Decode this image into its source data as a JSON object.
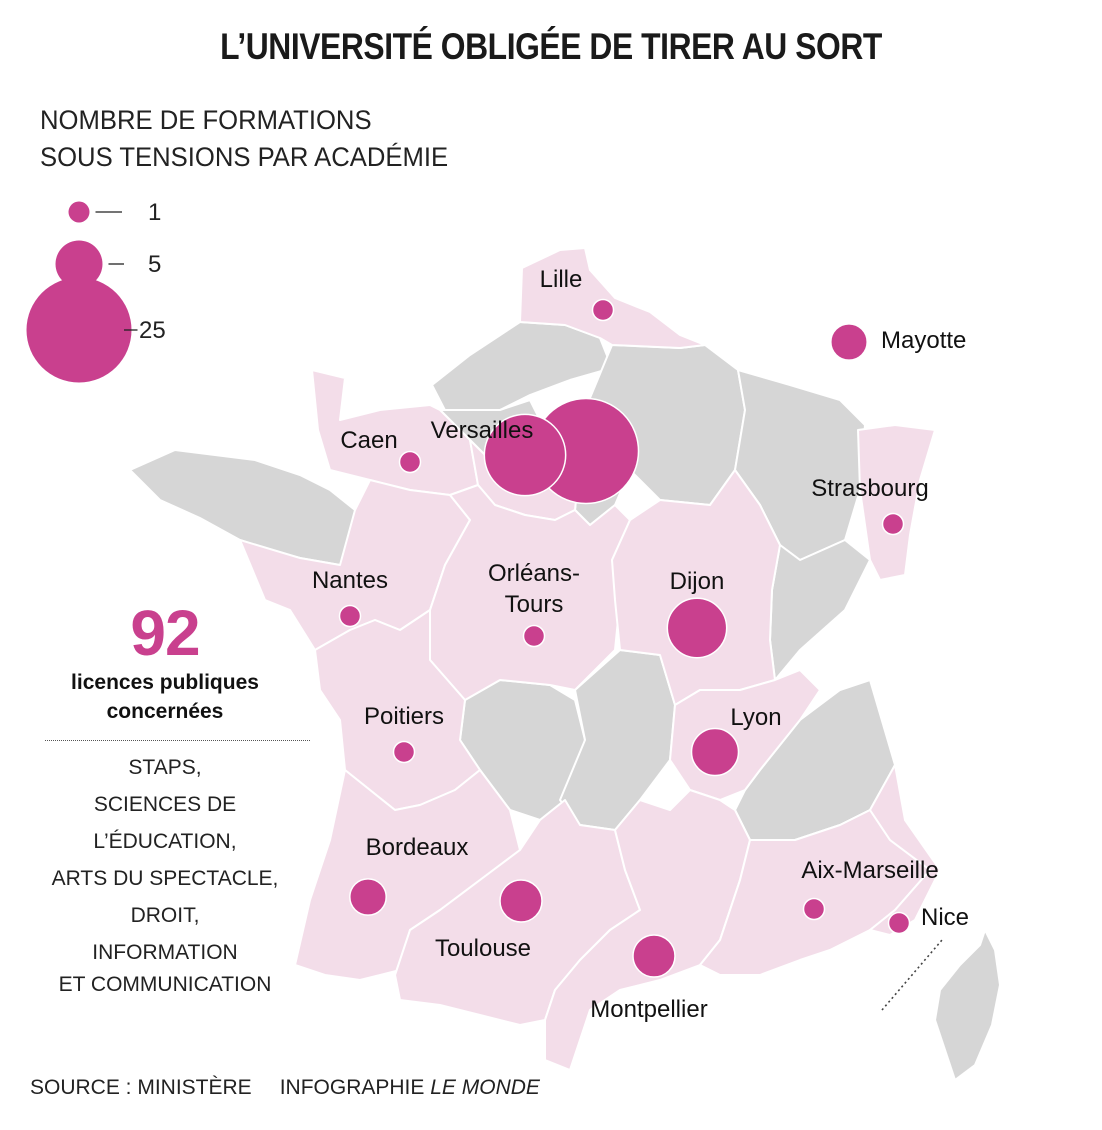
{
  "title": "L’UNIVERSITÉ OBLIGÉE DE TIRER AU SORT",
  "subtitle": [
    "NOMBRE DE FORMATIONS",
    "SOUS TENSIONS PAR ACADÉMIE"
  ],
  "legend": [
    {
      "value": 1,
      "label": "1"
    },
    {
      "value": 5,
      "label": "5"
    },
    {
      "value": 25,
      "label": "25"
    }
  ],
  "colors": {
    "bubble": "#c9408e",
    "affected_region": "#f3dde9",
    "other_region": "#d6d6d6",
    "border": "#ffffff"
  },
  "academies": [
    {
      "name": "Lille",
      "label": "Lille",
      "value": 1
    },
    {
      "name": "Caen",
      "label": "Caen",
      "value": 1
    },
    {
      "name": "Versailles",
      "label": "Versailles",
      "value": 15
    },
    {
      "name": "Paris",
      "label": "",
      "value": 25
    },
    {
      "name": "Strasbourg",
      "label": "Strasbourg",
      "value": 1
    },
    {
      "name": "Mayotte",
      "label": "Mayotte",
      "value": 3
    },
    {
      "name": "Nantes",
      "label": "Nantes",
      "value": 1
    },
    {
      "name": "Orléans-Tours",
      "label": "Orléans-\nTours",
      "value": 1
    },
    {
      "name": "Dijon",
      "label": "Dijon",
      "value": 8
    },
    {
      "name": "Poitiers",
      "label": "Poitiers",
      "value": 1
    },
    {
      "name": "Lyon",
      "label": "Lyon",
      "value": 5
    },
    {
      "name": "Bordeaux",
      "label": "Bordeaux",
      "value": 3
    },
    {
      "name": "Toulouse",
      "label": "Toulouse",
      "value": 4
    },
    {
      "name": "Aix-Marseille",
      "label": "Aix-Marseille",
      "value": 1
    },
    {
      "name": "Nice",
      "label": "Nice",
      "value": 1
    },
    {
      "name": "Montpellier",
      "label": "Montpellier",
      "value": 4
    }
  ],
  "stat": {
    "number": "92",
    "label": [
      "licences publiques",
      "concernées"
    ]
  },
  "fields": [
    "STAPS,",
    "SCIENCES DE L’ÉDUCATION,",
    "ARTS DU SPECTACLE,",
    "DROIT,",
    "INFORMATION",
    "ET COMMUNICATION"
  ],
  "source": {
    "source_label": "SOURCE : MINISTÈRE",
    "credit_label": "INFOGRAPHIE",
    "credit_outlet": "LE MONDE"
  }
}
